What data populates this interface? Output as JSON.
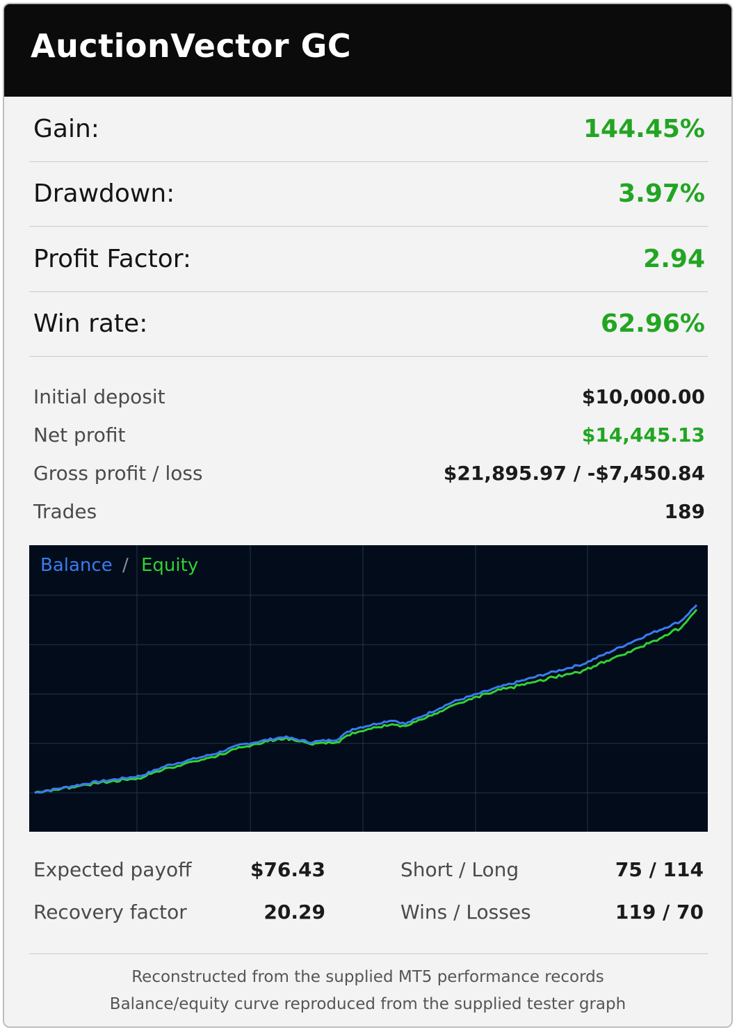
{
  "title": "AuctionVector GC",
  "main_metrics": [
    {
      "label": "Gain:",
      "value": "144.45%"
    },
    {
      "label": "Drawdown:",
      "value": "3.97%"
    },
    {
      "label": "Profit Factor:",
      "value": "2.94"
    },
    {
      "label": "Win rate:",
      "value": "62.96%"
    }
  ],
  "details": [
    {
      "label": "Initial deposit",
      "value": "$10,000.00"
    },
    {
      "label": "Net profit",
      "value": "$14,445.13"
    },
    {
      "label": "Gross profit / loss",
      "value": "$21,895.97 / -$7,450.84"
    },
    {
      "label": "Trades",
      "value": "189"
    }
  ],
  "chart_legend": {
    "balance": "Balance",
    "separator": "/",
    "equity": "Equity"
  },
  "colors": {
    "accent_green": "#22a522",
    "balance_line": "#3b7bf0",
    "equity_line": "#32d232",
    "chart_bg": "#020c1b",
    "header_bg": "#0b0b0b"
  },
  "chart_data": {
    "type": "line",
    "grid": true,
    "legend_position": "top-left",
    "x_points": 189,
    "ylim": [
      10000,
      26000
    ],
    "series": [
      {
        "name": "Balance",
        "color": "#3b7bf0",
        "start": 10000,
        "end": 24445.13,
        "keypoints": [
          [
            0,
            10000
          ],
          [
            22,
            10800
          ],
          [
            40,
            11300
          ],
          [
            50,
            12100
          ],
          [
            68,
            13000
          ],
          [
            78,
            13700
          ],
          [
            94,
            14300
          ],
          [
            104,
            13900
          ],
          [
            114,
            14100
          ],
          [
            120,
            14900
          ],
          [
            135,
            15600
          ],
          [
            140,
            15300
          ],
          [
            158,
            17000
          ],
          [
            175,
            18100
          ],
          [
            194,
            19200
          ],
          [
            207,
            19900
          ],
          [
            220,
            21100
          ],
          [
            232,
            22200
          ],
          [
            244,
            23200
          ],
          [
            250,
            24445.13
          ]
        ]
      },
      {
        "name": "Equity",
        "color": "#32d232",
        "start": 10000,
        "end": 24100,
        "keypoints": [
          [
            0,
            10000
          ],
          [
            22,
            10700
          ],
          [
            40,
            11150
          ],
          [
            50,
            11900
          ],
          [
            68,
            12800
          ],
          [
            78,
            13500
          ],
          [
            94,
            14200
          ],
          [
            104,
            13800
          ],
          [
            114,
            13900
          ],
          [
            120,
            14650
          ],
          [
            135,
            15300
          ],
          [
            140,
            15100
          ],
          [
            158,
            16750
          ],
          [
            175,
            17850
          ],
          [
            194,
            18800
          ],
          [
            207,
            19400
          ],
          [
            220,
            20500
          ],
          [
            232,
            21500
          ],
          [
            244,
            22700
          ],
          [
            250,
            24100
          ]
        ]
      }
    ]
  },
  "bottom_stats": [
    {
      "label": "Expected payoff",
      "value": "$76.43"
    },
    {
      "label": "Short / Long",
      "value": "75 / 114"
    },
    {
      "label": "Recovery factor",
      "value": "20.29"
    },
    {
      "label": "Wins / Losses",
      "value": "119 / 70"
    }
  ],
  "footer": [
    "Reconstructed from the supplied MT5 performance records",
    "Balance/equity curve reproduced from the supplied tester graph"
  ]
}
